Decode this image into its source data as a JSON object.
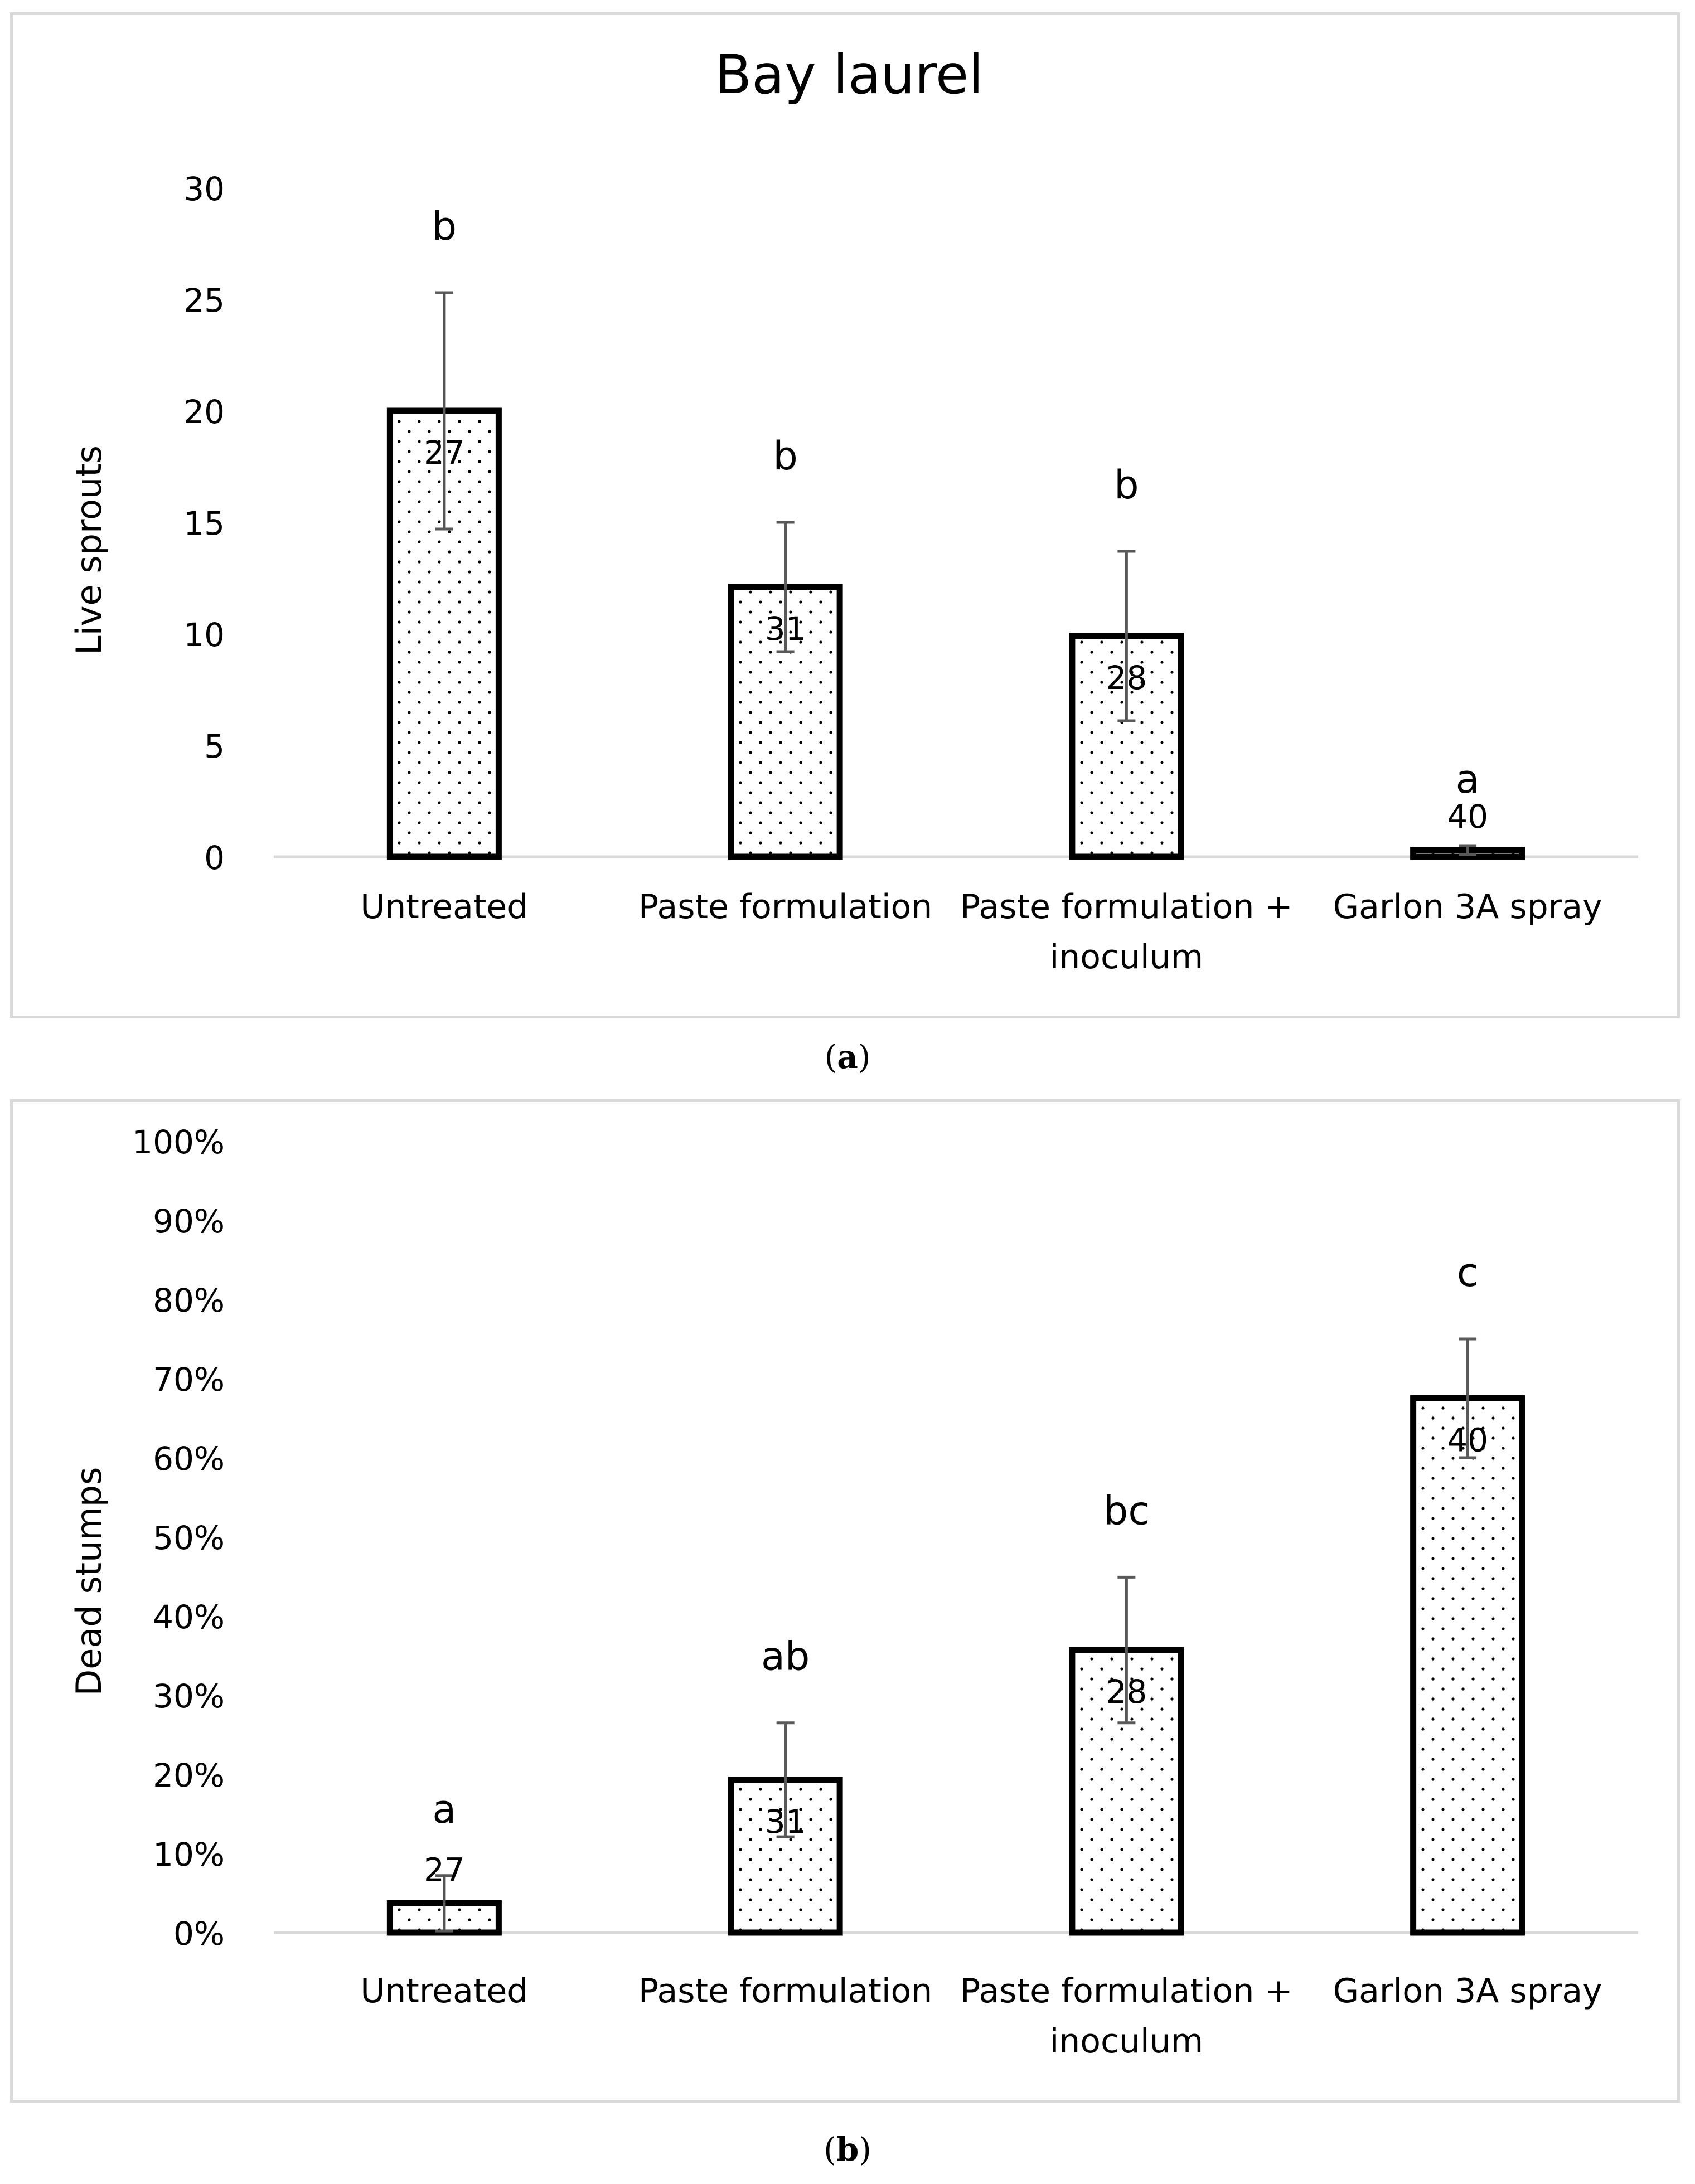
{
  "chart_data": [
    {
      "type": "bar",
      "panel_id": "a",
      "title": "Bay laurel",
      "xlabel": "",
      "ylabel": "Live sprouts",
      "ylim": [
        0,
        30
      ],
      "ytick_step": 5,
      "percent": false,
      "categories": [
        [
          "Untreated"
        ],
        [
          "Paste formulation"
        ],
        [
          "Paste formulation +",
          "inoculum"
        ],
        [
          "Garlon 3A spray"
        ]
      ],
      "values": [
        20,
        12.1,
        9.9,
        0.3
      ],
      "error": [
        5.3,
        2.9,
        3.8,
        0.2
      ],
      "sample_sizes": [
        "27",
        "31",
        "28",
        "40"
      ],
      "letters": [
        "b",
        "b",
        "b",
        "a"
      ]
    },
    {
      "type": "bar",
      "panel_id": "b",
      "title": "",
      "xlabel": "",
      "ylabel": "Dead stumps",
      "ylim": [
        0,
        1
      ],
      "ytick_step": 0.1,
      "percent": true,
      "categories": [
        [
          "Untreated"
        ],
        [
          "Paste formulation"
        ],
        [
          "Paste formulation +",
          "inoculum"
        ],
        [
          "Garlon 3A spray"
        ]
      ],
      "values": [
        0.037,
        0.193,
        0.357,
        0.675
      ],
      "error": [
        0.035,
        0.072,
        0.092,
        0.075
      ],
      "sample_sizes": [
        "27",
        "31",
        "28",
        "40"
      ],
      "letters": [
        "a",
        "ab",
        "bc",
        "c"
      ]
    }
  ],
  "captions": {
    "a_open": "(",
    "a_letter": "a",
    "a_close": ")",
    "b_open": "(",
    "b_letter": "b",
    "b_close": ")"
  },
  "colors": {
    "bar_stroke": "#000000",
    "bar_fill": "#ffffff",
    "dot": "#000000",
    "error_bar": "#595959",
    "axis_line": "#d9d9d9"
  }
}
